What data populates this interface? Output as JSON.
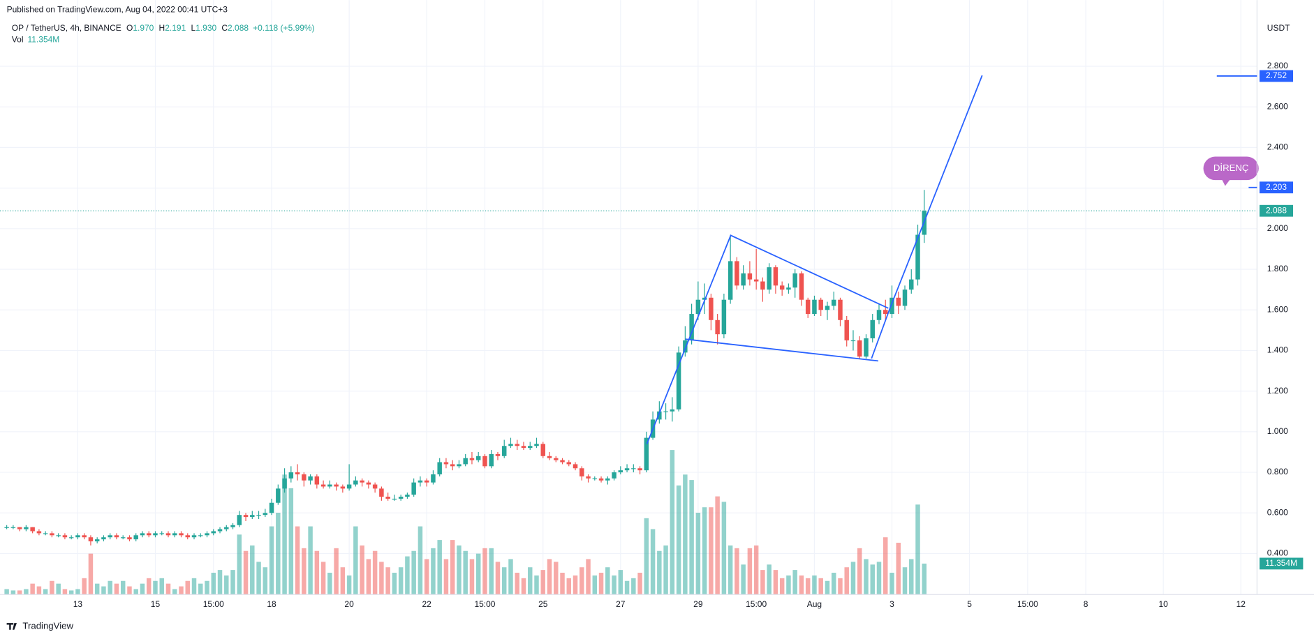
{
  "chart_data": {
    "type": "candlestick",
    "published": "Published on TradingView.com, Aug 04, 2022 00:41 UTC+3",
    "title": "OP / TetherUS, 4h, BINANCE",
    "legend": [
      {
        "key": "O",
        "value": "1.970"
      },
      {
        "key": "H",
        "value": "2.191"
      },
      {
        "key": "L",
        "value": "1.930"
      },
      {
        "key": "C",
        "value": "2.088"
      }
    ],
    "change": "+0.118 (+5.99%)",
    "volume_title": "Vol",
    "last_volume_label": "11.354M",
    "y_axis_label": "USDT",
    "annotation": "DİRENÇ",
    "brand": "TradingView",
    "up_color": "#26a69a",
    "down_color": "#ef5350",
    "line_color": "#2962ff",
    "price_labels": [
      {
        "value": 2.752,
        "label": "2.752"
      },
      {
        "value": 2.203,
        "label": "2.203"
      }
    ],
    "xlim": [
      -1.04,
      193.5
    ],
    "xticks": [
      {
        "value": 11,
        "label": "13"
      },
      {
        "value": 23,
        "label": "15"
      },
      {
        "value": 32,
        "label": "15:00"
      },
      {
        "value": 41,
        "label": "18"
      },
      {
        "value": 53,
        "label": "20"
      },
      {
        "value": 65,
        "label": "22"
      },
      {
        "value": 74,
        "label": "15:00"
      },
      {
        "value": 83,
        "label": "25"
      },
      {
        "value": 95,
        "label": "27"
      },
      {
        "value": 107,
        "label": "29"
      },
      {
        "value": 116,
        "label": "15:00"
      },
      {
        "value": 125,
        "label": "Aug"
      },
      {
        "value": 137,
        "label": "3"
      },
      {
        "value": 149,
        "label": "5"
      },
      {
        "value": 158,
        "label": "15:00"
      },
      {
        "value": 167,
        "label": "8"
      },
      {
        "value": 179,
        "label": "10"
      },
      {
        "value": 191,
        "label": "12"
      }
    ],
    "ylim": [
      0.198,
      3.126
    ],
    "yticks": [
      {
        "value": 0.4,
        "label": "0.400"
      },
      {
        "value": 0.6,
        "label": "0.600"
      },
      {
        "value": 0.8,
        "label": "0.800"
      },
      {
        "value": 1.0,
        "label": "1.000"
      },
      {
        "value": 1.2,
        "label": "1.200"
      },
      {
        "value": 1.4,
        "label": "1.400"
      },
      {
        "value": 1.6,
        "label": "1.600"
      },
      {
        "value": 1.8,
        "label": "1.800"
      },
      {
        "value": 2.0,
        "label": "2.000"
      },
      {
        "value": 2.2,
        "label": "2.200"
      },
      {
        "value": 2.4,
        "label": "2.400"
      },
      {
        "value": 2.6,
        "label": "2.600"
      },
      {
        "value": 2.8,
        "label": "2.800"
      }
    ],
    "volume_ylim": [
      0,
      218
    ],
    "grid": true,
    "open": [
      0.53,
      0.53,
      0.53,
      0.52,
      0.53,
      0.51,
      0.5,
      0.5,
      0.49,
      0.49,
      0.48,
      0.48,
      0.49,
      0.48,
      0.46,
      0.47,
      0.48,
      0.49,
      0.48,
      0.48,
      0.47,
      0.49,
      0.5,
      0.49,
      0.5,
      0.5,
      0.49,
      0.5,
      0.49,
      0.48,
      0.49,
      0.49,
      0.5,
      0.51,
      0.52,
      0.53,
      0.54,
      0.59,
      0.58,
      0.59,
      0.59,
      0.6,
      0.65,
      0.72,
      0.77,
      0.8,
      0.79,
      0.76,
      0.78,
      0.74,
      0.73,
      0.74,
      0.73,
      0.72,
      0.74,
      0.76,
      0.75,
      0.74,
      0.72,
      0.68,
      0.67,
      0.67,
      0.68,
      0.69,
      0.75,
      0.76,
      0.75,
      0.79,
      0.85,
      0.84,
      0.83,
      0.84,
      0.87,
      0.86,
      0.88,
      0.83,
      0.89,
      0.88,
      0.93,
      0.94,
      0.93,
      0.92,
      0.93,
      0.94,
      0.88,
      0.87,
      0.86,
      0.85,
      0.84,
      0.82,
      0.78,
      0.77,
      0.77,
      0.76,
      0.77,
      0.8,
      0.81,
      0.82,
      0.82,
      0.81,
      0.97,
      1.06,
      1.1,
      1.1,
      1.11,
      1.39,
      1.45,
      1.58,
      1.65,
      1.66,
      1.55,
      1.48,
      1.65,
      1.84,
      1.72,
      1.78,
      1.75,
      1.74,
      1.7,
      1.81,
      1.72,
      1.7,
      1.71,
      1.78,
      1.65,
      1.58,
      1.65,
      1.6,
      1.62,
      1.65,
      1.55,
      1.45,
      1.45,
      1.37,
      1.46,
      1.55,
      1.6,
      1.58,
      1.66,
      1.62,
      1.7,
      1.75,
      1.97
    ],
    "high": [
      0.54,
      0.54,
      0.53,
      0.54,
      0.53,
      0.52,
      0.51,
      0.51,
      0.5,
      0.5,
      0.49,
      0.5,
      0.5,
      0.49,
      0.48,
      0.49,
      0.5,
      0.5,
      0.49,
      0.49,
      0.5,
      0.51,
      0.51,
      0.51,
      0.51,
      0.51,
      0.51,
      0.51,
      0.5,
      0.5,
      0.5,
      0.51,
      0.52,
      0.53,
      0.54,
      0.55,
      0.61,
      0.6,
      0.61,
      0.61,
      0.62,
      0.67,
      0.74,
      0.82,
      0.83,
      0.84,
      0.8,
      0.79,
      0.79,
      0.76,
      0.76,
      0.75,
      0.74,
      0.84,
      0.78,
      0.77,
      0.76,
      0.75,
      0.73,
      0.7,
      0.69,
      0.69,
      0.7,
      0.77,
      0.78,
      0.77,
      0.81,
      0.87,
      0.87,
      0.86,
      0.86,
      0.89,
      0.9,
      0.9,
      0.89,
      0.91,
      0.9,
      0.96,
      0.97,
      0.96,
      0.95,
      0.95,
      0.97,
      0.95,
      0.9,
      0.88,
      0.87,
      0.86,
      0.85,
      0.83,
      0.79,
      0.78,
      0.78,
      0.78,
      0.81,
      0.83,
      0.84,
      0.84,
      0.83,
      1.0,
      1.1,
      1.15,
      1.14,
      1.17,
      1.42,
      1.52,
      1.63,
      1.74,
      1.73,
      1.68,
      1.58,
      1.68,
      1.97,
      1.86,
      1.82,
      1.84,
      1.9,
      1.76,
      1.83,
      1.82,
      1.74,
      1.73,
      1.8,
      1.79,
      1.66,
      1.67,
      1.66,
      1.64,
      1.69,
      1.66,
      1.57,
      1.5,
      1.47,
      1.48,
      1.58,
      1.63,
      1.65,
      1.72,
      1.69,
      1.72,
      1.8,
      2.02,
      2.191
    ],
    "low": [
      0.52,
      0.52,
      0.51,
      0.51,
      0.5,
      0.49,
      0.49,
      0.48,
      0.48,
      0.47,
      0.47,
      0.47,
      0.47,
      0.44,
      0.45,
      0.46,
      0.47,
      0.47,
      0.47,
      0.46,
      0.46,
      0.48,
      0.48,
      0.48,
      0.49,
      0.48,
      0.48,
      0.48,
      0.47,
      0.47,
      0.48,
      0.48,
      0.49,
      0.5,
      0.51,
      0.52,
      0.53,
      0.56,
      0.57,
      0.57,
      0.58,
      0.59,
      0.64,
      0.7,
      0.75,
      0.76,
      0.73,
      0.74,
      0.72,
      0.72,
      0.72,
      0.71,
      0.7,
      0.71,
      0.73,
      0.73,
      0.72,
      0.7,
      0.66,
      0.66,
      0.66,
      0.66,
      0.67,
      0.68,
      0.73,
      0.73,
      0.74,
      0.78,
      0.82,
      0.81,
      0.82,
      0.83,
      0.84,
      0.85,
      0.82,
      0.82,
      0.86,
      0.87,
      0.92,
      0.91,
      0.91,
      0.91,
      0.92,
      0.87,
      0.86,
      0.85,
      0.84,
      0.83,
      0.81,
      0.76,
      0.75,
      0.76,
      0.75,
      0.74,
      0.76,
      0.79,
      0.8,
      0.8,
      0.79,
      0.8,
      0.96,
      1.04,
      1.06,
      1.05,
      1.1,
      1.37,
      1.43,
      1.55,
      1.58,
      1.5,
      1.43,
      1.46,
      1.63,
      1.7,
      1.7,
      1.72,
      1.7,
      1.64,
      1.68,
      1.68,
      1.67,
      1.68,
      1.66,
      1.62,
      1.56,
      1.57,
      1.57,
      1.55,
      1.6,
      1.52,
      1.42,
      1.4,
      1.36,
      1.36,
      1.44,
      1.53,
      1.55,
      1.56,
      1.58,
      1.6,
      1.68,
      1.72,
      1.93
    ],
    "close": [
      0.53,
      0.53,
      0.52,
      0.53,
      0.51,
      0.5,
      0.5,
      0.49,
      0.49,
      0.48,
      0.48,
      0.49,
      0.48,
      0.46,
      0.47,
      0.48,
      0.49,
      0.48,
      0.48,
      0.47,
      0.49,
      0.5,
      0.49,
      0.5,
      0.5,
      0.49,
      0.5,
      0.49,
      0.48,
      0.49,
      0.49,
      0.5,
      0.51,
      0.52,
      0.53,
      0.54,
      0.59,
      0.58,
      0.59,
      0.59,
      0.6,
      0.65,
      0.72,
      0.77,
      0.8,
      0.79,
      0.76,
      0.78,
      0.74,
      0.73,
      0.74,
      0.73,
      0.72,
      0.74,
      0.76,
      0.75,
      0.74,
      0.72,
      0.68,
      0.67,
      0.67,
      0.68,
      0.69,
      0.75,
      0.76,
      0.75,
      0.79,
      0.85,
      0.84,
      0.83,
      0.84,
      0.87,
      0.86,
      0.88,
      0.83,
      0.89,
      0.88,
      0.93,
      0.94,
      0.93,
      0.92,
      0.93,
      0.94,
      0.88,
      0.87,
      0.86,
      0.85,
      0.84,
      0.82,
      0.78,
      0.77,
      0.77,
      0.76,
      0.77,
      0.8,
      0.81,
      0.82,
      0.82,
      0.81,
      0.97,
      1.06,
      1.1,
      1.1,
      1.11,
      1.39,
      1.45,
      1.58,
      1.65,
      1.66,
      1.55,
      1.48,
      1.65,
      1.84,
      1.72,
      1.78,
      1.75,
      1.74,
      1.7,
      1.81,
      1.72,
      1.7,
      1.71,
      1.78,
      1.65,
      1.58,
      1.65,
      1.6,
      1.62,
      1.65,
      1.55,
      1.45,
      1.45,
      1.37,
      1.46,
      1.55,
      1.6,
      1.58,
      1.66,
      1.62,
      1.7,
      1.75,
      1.97,
      2.088
    ],
    "volume": [
      2,
      1.5,
      1.5,
      2,
      4,
      3,
      2,
      5,
      4,
      2,
      1.5,
      2,
      6,
      15,
      4,
      3,
      5,
      4,
      5,
      3,
      2,
      4,
      6,
      5,
      6,
      4,
      2,
      3,
      5,
      6,
      4,
      5,
      8,
      9,
      7,
      9,
      22,
      16,
      18,
      12,
      10,
      25,
      30,
      44,
      39,
      25,
      17,
      25,
      16,
      12,
      8,
      17,
      10,
      7,
      25,
      18,
      13,
      16,
      12,
      10,
      8,
      10,
      14,
      16,
      25,
      13,
      17,
      20,
      13,
      20,
      18,
      16,
      13,
      15,
      17,
      17,
      12,
      10,
      13,
      8,
      6,
      10,
      7,
      9,
      13,
      12,
      8,
      6,
      7,
      10,
      13,
      7,
      8,
      10,
      7,
      9,
      5,
      6,
      8,
      28,
      24,
      16,
      18,
      53,
      40,
      44,
      42,
      30,
      32,
      32,
      36,
      34,
      18,
      17,
      11,
      17,
      18,
      9,
      11,
      9,
      6,
      7,
      9,
      7,
      6,
      7,
      6,
      5,
      8,
      6,
      10,
      12,
      17,
      13,
      11,
      12,
      21,
      8,
      19,
      10,
      13,
      33,
      11.354
    ]
  }
}
